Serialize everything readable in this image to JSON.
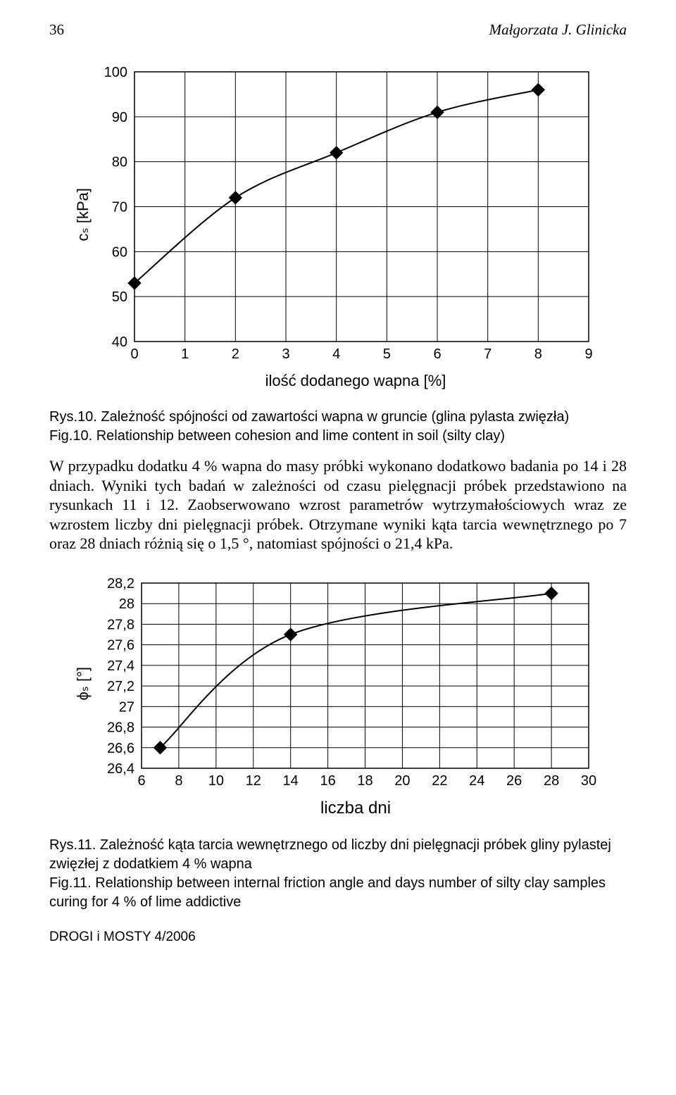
{
  "header": {
    "page_number": "36",
    "author": "Małgorzata J. Glinicka"
  },
  "chart1": {
    "type": "line",
    "ylabel": "cₛ [kPa]",
    "xlabel": "ilość dodanego wapna [%]",
    "xlim": [
      0,
      9
    ],
    "ylim": [
      40,
      100
    ],
    "xticks": [
      0,
      1,
      2,
      3,
      4,
      5,
      6,
      7,
      8,
      9
    ],
    "yticks": [
      40,
      50,
      60,
      70,
      80,
      90,
      100
    ],
    "grid_color": "#000000",
    "background_color": "#ffffff",
    "line_color": "#000000",
    "marker_color": "#000000",
    "line_width": 2,
    "marker": "diamond",
    "marker_size": 9,
    "tick_fontsize": 20,
    "points": [
      {
        "x": 0,
        "y": 53
      },
      {
        "x": 2,
        "y": 72
      },
      {
        "x": 4,
        "y": 82
      },
      {
        "x": 6,
        "y": 91
      },
      {
        "x": 8,
        "y": 96
      }
    ]
  },
  "caption1": {
    "line1": "Rys.10. Zależność spójności od zawartości wapna w gruncie (glina pylasta zwięzła)",
    "line2": "Fig.10. Relationship between cohesion and lime content in soil (silty clay)"
  },
  "paragraph": "W przypadku dodatku 4 % wapna do masy próbki wykonano dodatkowo badania po 14 i 28 dniach. Wyniki tych badań w zależności od czasu pielęgnacji próbek przedstawiono na rysunkach 11 i 12. Zaobserwowano wzrost parametrów wytrzymałościowych wraz ze wzrostem liczby dni pielęgnacji próbek. Otrzymane wyniki kąta tarcia wewnętrznego po 7 oraz 28 dniach różnią się o 1,5 °, natomiast spójności o 21,4 kPa.",
  "chart2": {
    "type": "line",
    "ylabel": "ϕₛ [°]",
    "xlabel": "liczba dni",
    "xlim": [
      6,
      30
    ],
    "ylim": [
      26.4,
      28.2
    ],
    "xticks": [
      6,
      8,
      10,
      12,
      14,
      16,
      18,
      20,
      22,
      24,
      26,
      28,
      30
    ],
    "yticks": [
      26.4,
      26.6,
      26.8,
      27,
      27.2,
      27.4,
      27.6,
      27.8,
      28,
      28.2
    ],
    "ytick_labels": [
      "26,4",
      "26,6",
      "26,8",
      "27",
      "27,2",
      "27,4",
      "27,6",
      "27,8",
      "28",
      "28,2"
    ],
    "grid_color": "#000000",
    "background_color": "#ffffff",
    "line_color": "#000000",
    "marker_color": "#000000",
    "line_width": 2,
    "marker": "diamond",
    "marker_size": 9,
    "tick_fontsize": 20,
    "points": [
      {
        "x": 7,
        "y": 26.6
      },
      {
        "x": 14,
        "y": 27.7
      },
      {
        "x": 28,
        "y": 28.1
      }
    ]
  },
  "caption2": {
    "line1": "Rys.11. Zależność kąta tarcia wewnętrznego od liczby dni pielęgnacji próbek gliny pylastej zwięzłej z dodatkiem 4 % wapna",
    "line2": "Fig.11. Relationship between internal friction angle and days number of silty clay samples curing for 4 % of lime addictive"
  },
  "footer": "DROGI i MOSTY 4/2006"
}
